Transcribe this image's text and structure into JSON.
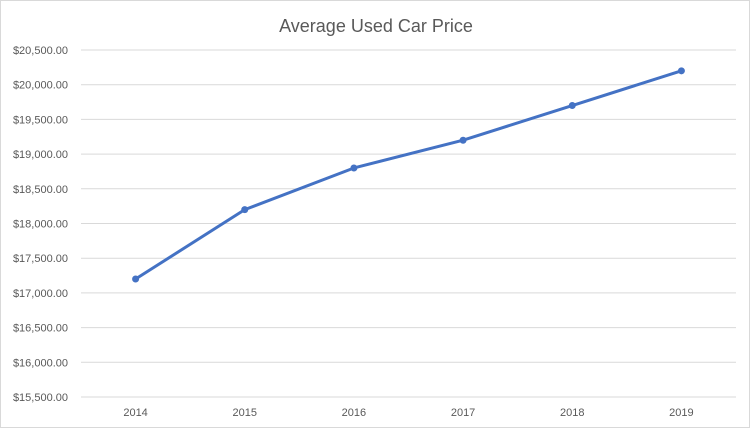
{
  "chart_data": {
    "type": "line",
    "title": "Average Used Car Price",
    "xlabel": "",
    "ylabel": "",
    "categories": [
      "2014",
      "2015",
      "2016",
      "2017",
      "2018",
      "2019"
    ],
    "series": [
      {
        "values": [
          17200,
          18200,
          18800,
          19200,
          19700,
          20200
        ],
        "color": "#4472c4"
      }
    ],
    "ylim": [
      15500,
      20500
    ],
    "yticks": [
      "$15,500.00",
      "$16,000.00",
      "$16,500.00",
      "$17,000.00",
      "$17,500.00",
      "$18,000.00",
      "$18,500.00",
      "$19,000.00",
      "$19,500.00",
      "$20,000.00",
      "$20,500.00"
    ],
    "grid": true,
    "legend": "none"
  }
}
